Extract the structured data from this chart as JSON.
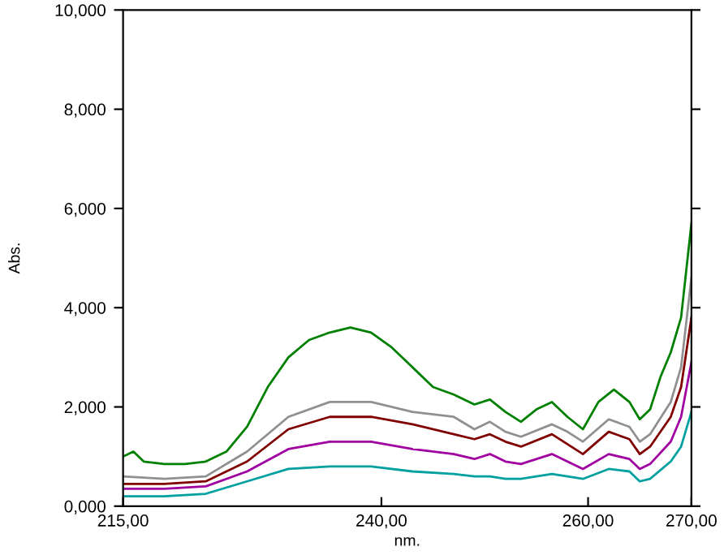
{
  "chart_data": {
    "type": "line",
    "xlabel": "nm.",
    "ylabel": "Abs.",
    "xlim": [
      215,
      270
    ],
    "ylim": [
      0,
      10
    ],
    "xticks": [
      {
        "value": 215,
        "label": "215,00"
      },
      {
        "value": 240,
        "label": "240,00"
      },
      {
        "value": 260,
        "label": "260,00"
      },
      {
        "value": 270,
        "label": "270,00"
      }
    ],
    "yticks": [
      {
        "value": 0,
        "label": "0,000"
      },
      {
        "value": 2,
        "label": "2,000"
      },
      {
        "value": 4,
        "label": "4,000"
      },
      {
        "value": 6,
        "label": "6,000"
      },
      {
        "value": 8,
        "label": "8,000"
      },
      {
        "value": 10,
        "label": "10,000"
      }
    ],
    "grid": false,
    "legend": false,
    "marker": "none",
    "line_style": "solid",
    "series": [
      {
        "color": "#008000",
        "x": [
          215,
          216,
          217,
          219,
          221,
          223,
          225,
          227,
          229,
          231,
          233,
          235,
          237,
          239,
          241,
          243,
          245,
          247,
          249,
          250.5,
          252,
          253.5,
          255,
          256.5,
          258,
          259.5,
          261,
          262.5,
          264,
          265,
          266,
          267,
          268,
          269,
          270
        ],
        "values": [
          1.0,
          1.1,
          0.9,
          0.85,
          0.85,
          0.9,
          1.1,
          1.6,
          2.4,
          3.0,
          3.35,
          3.5,
          3.6,
          3.5,
          3.2,
          2.8,
          2.4,
          2.25,
          2.05,
          2.15,
          1.9,
          1.7,
          1.95,
          2.1,
          1.8,
          1.55,
          2.1,
          2.35,
          2.1,
          1.75,
          1.95,
          2.6,
          3.1,
          3.8,
          5.7
        ]
      },
      {
        "color": "#909090",
        "x": [
          215,
          219,
          223,
          227,
          231,
          235,
          239,
          243,
          247,
          249,
          250.5,
          252,
          253.5,
          256.5,
          258,
          259.5,
          262,
          264,
          265,
          266,
          268,
          269,
          270
        ],
        "values": [
          0.6,
          0.55,
          0.6,
          1.1,
          1.8,
          2.1,
          2.1,
          1.9,
          1.8,
          1.55,
          1.7,
          1.5,
          1.4,
          1.65,
          1.5,
          1.3,
          1.75,
          1.6,
          1.3,
          1.45,
          2.1,
          2.8,
          4.6
        ]
      },
      {
        "color": "#800000",
        "x": [
          215,
          219,
          223,
          227,
          231,
          235,
          239,
          243,
          247,
          249,
          250.5,
          252,
          253.5,
          256.5,
          258,
          259.5,
          262,
          264,
          265,
          266,
          268,
          269,
          270
        ],
        "values": [
          0.45,
          0.45,
          0.5,
          0.9,
          1.55,
          1.8,
          1.8,
          1.65,
          1.45,
          1.35,
          1.45,
          1.3,
          1.2,
          1.45,
          1.25,
          1.05,
          1.5,
          1.35,
          1.05,
          1.2,
          1.8,
          2.4,
          3.8
        ]
      },
      {
        "color": "#a000a0",
        "x": [
          215,
          219,
          223,
          227,
          231,
          235,
          239,
          243,
          247,
          249,
          250.5,
          252,
          253.5,
          256.5,
          258,
          259.5,
          262,
          264,
          265,
          266,
          268,
          269,
          270
        ],
        "values": [
          0.35,
          0.35,
          0.4,
          0.7,
          1.15,
          1.3,
          1.3,
          1.15,
          1.05,
          0.95,
          1.05,
          0.9,
          0.85,
          1.05,
          0.9,
          0.75,
          1.05,
          0.95,
          0.75,
          0.85,
          1.3,
          1.8,
          2.9
        ]
      },
      {
        "color": "#00a0a0",
        "x": [
          215,
          219,
          223,
          227,
          231,
          235,
          239,
          243,
          247,
          249,
          250.5,
          252,
          253.5,
          256.5,
          258,
          259.5,
          262,
          264,
          265,
          266,
          268,
          269,
          270
        ],
        "values": [
          0.2,
          0.2,
          0.25,
          0.5,
          0.75,
          0.8,
          0.8,
          0.7,
          0.65,
          0.6,
          0.6,
          0.55,
          0.55,
          0.65,
          0.6,
          0.55,
          0.75,
          0.7,
          0.5,
          0.55,
          0.9,
          1.2,
          1.9
        ]
      }
    ]
  }
}
